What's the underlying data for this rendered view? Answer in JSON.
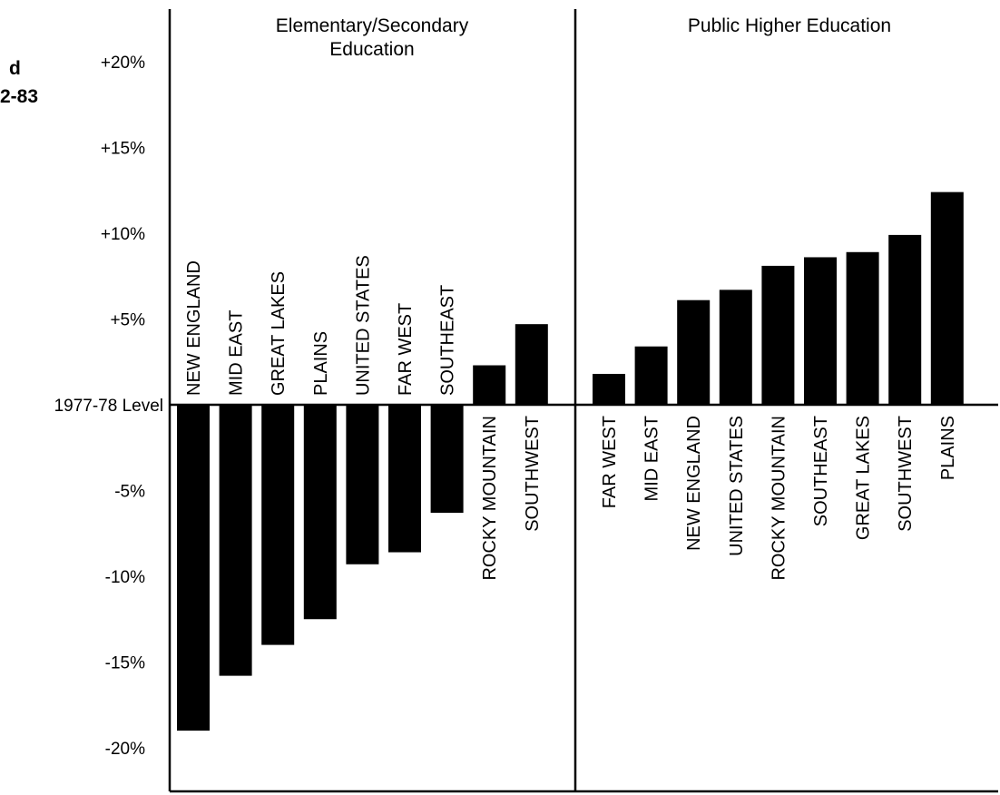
{
  "title_fragments": [
    "d",
    "2-83"
  ],
  "chart_data": {
    "type": "bar",
    "baseline_label": "1977-78 Level",
    "ylim": [
      -20,
      20
    ],
    "yticks": [
      {
        "value": 20,
        "label": "+20%"
      },
      {
        "value": 15,
        "label": "+15%"
      },
      {
        "value": 10,
        "label": "+10%"
      },
      {
        "value": 5,
        "label": "+5%"
      },
      {
        "value": 0,
        "label": "1977-78 Level"
      },
      {
        "value": -5,
        "label": "-5%"
      },
      {
        "value": -10,
        "label": "-10%"
      },
      {
        "value": -15,
        "label": "-15%"
      },
      {
        "value": -20,
        "label": "-20%"
      }
    ],
    "grid": false,
    "panels": [
      {
        "title_lines": [
          "Elementary/Secondary",
          "Education"
        ],
        "categories": [
          "NEW ENGLAND",
          "MID EAST",
          "GREAT LAKES",
          "PLAINS",
          "UNITED STATES",
          "FAR WEST",
          "SOUTHEAST",
          "ROCKY MOUNTAIN",
          "SOUTHWEST"
        ],
        "values": [
          -19.0,
          -15.8,
          -14.0,
          -12.5,
          -9.3,
          -8.6,
          -6.3,
          2.3,
          4.7
        ]
      },
      {
        "title_lines": [
          "Public Higher Education"
        ],
        "categories": [
          "FAR WEST",
          "MID EAST",
          "NEW ENGLAND",
          "UNITED STATES",
          "ROCKY MOUNTAIN",
          "SOUTHEAST",
          "GREAT LAKES",
          "SOUTHWEST",
          "PLAINS"
        ],
        "values": [
          1.8,
          3.4,
          6.1,
          6.7,
          8.1,
          8.6,
          8.9,
          9.9,
          12.4
        ]
      }
    ]
  }
}
